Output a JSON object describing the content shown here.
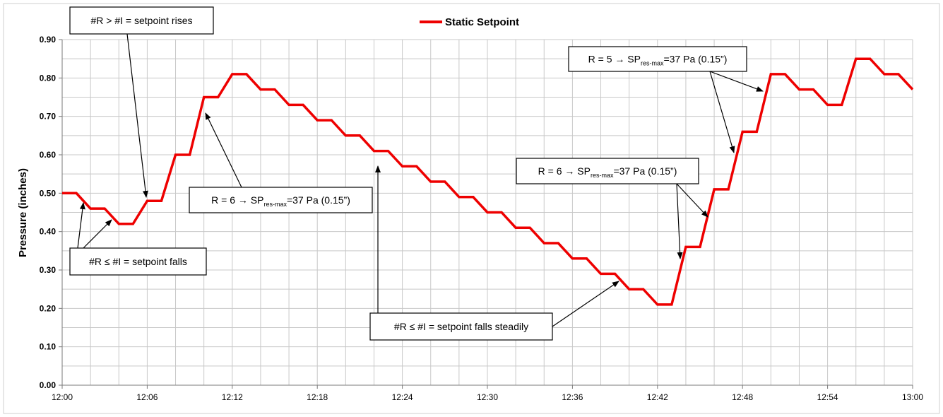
{
  "chart_data": {
    "type": "line",
    "title": "",
    "xlabel": "",
    "ylabel": "Pressure (inches)",
    "xlim": [
      "12:00",
      "13:00"
    ],
    "ylim": [
      0,
      0.9
    ],
    "grid": true,
    "legend_position": "top-center",
    "x_ticks": [
      "12:00",
      "12:06",
      "12:12",
      "12:18",
      "12:24",
      "12:30",
      "12:36",
      "12:42",
      "12:48",
      "12:54",
      "13:00"
    ],
    "y_ticks": [
      "0.00",
      "0.10",
      "0.20",
      "0.30",
      "0.40",
      "0.50",
      "0.60",
      "0.70",
      "0.80",
      "0.90"
    ],
    "colors": {
      "series": "#ee0000",
      "grid": "#c8c8c8"
    },
    "series": [
      {
        "name": "Static Setpoint",
        "x": [
          "12:00",
          "12:01",
          "12:02",
          "12:03",
          "12:04",
          "12:05",
          "12:06",
          "12:07",
          "12:08",
          "12:09",
          "12:10",
          "12:11",
          "12:12",
          "12:13",
          "12:14",
          "12:15",
          "12:16",
          "12:17",
          "12:18",
          "12:19",
          "12:20",
          "12:21",
          "12:22",
          "12:23",
          "12:24",
          "12:25",
          "12:26",
          "12:27",
          "12:28",
          "12:29",
          "12:30",
          "12:31",
          "12:32",
          "12:33",
          "12:34",
          "12:35",
          "12:36",
          "12:37",
          "12:38",
          "12:39",
          "12:40",
          "12:41",
          "12:42",
          "12:43",
          "12:44",
          "12:45",
          "12:46",
          "12:47",
          "12:48",
          "12:49",
          "12:50",
          "12:51",
          "12:52",
          "12:53",
          "12:54",
          "12:55",
          "12:56",
          "12:57",
          "12:58",
          "12:59",
          "13:00"
        ],
        "values": [
          0.5,
          0.5,
          0.46,
          0.46,
          0.42,
          0.42,
          0.48,
          0.48,
          0.6,
          0.6,
          0.75,
          0.75,
          0.81,
          0.81,
          0.77,
          0.77,
          0.73,
          0.73,
          0.69,
          0.69,
          0.65,
          0.65,
          0.61,
          0.61,
          0.57,
          0.57,
          0.53,
          0.53,
          0.49,
          0.49,
          0.45,
          0.45,
          0.41,
          0.41,
          0.37,
          0.37,
          0.33,
          0.33,
          0.29,
          0.29,
          0.25,
          0.25,
          0.21,
          0.21,
          0.36,
          0.36,
          0.51,
          0.51,
          0.66,
          0.66,
          0.81,
          0.81,
          0.77,
          0.77,
          0.73,
          0.73,
          0.85,
          0.85,
          0.81,
          0.81,
          0.77
        ]
      }
    ],
    "annotations": [
      {
        "id": "ann1",
        "lines": [
          [
            "#R > #I = setpoint rises"
          ]
        ]
      },
      {
        "id": "ann2",
        "lines": [
          [
            "#R ≤ #I = setpoint falls"
          ]
        ]
      },
      {
        "id": "ann3",
        "lines": [
          [
            "R = 6 → SP"
          ],
          [
            "res-max",
            "sub"
          ],
          [
            "=37 Pa (0.15”)"
          ]
        ]
      },
      {
        "id": "ann4",
        "lines": [
          [
            "#R ≤ #I = setpoint falls steadily"
          ]
        ]
      },
      {
        "id": "ann5",
        "lines": [
          [
            "R = 6 → SP"
          ],
          [
            "res-max",
            "sub"
          ],
          [
            "=37 Pa (0.15”)"
          ]
        ]
      },
      {
        "id": "ann6",
        "lines": [
          [
            "R = 5 → SP"
          ],
          [
            "res-max",
            "sub"
          ],
          [
            "=37 Pa (0.15”)"
          ]
        ]
      }
    ]
  }
}
